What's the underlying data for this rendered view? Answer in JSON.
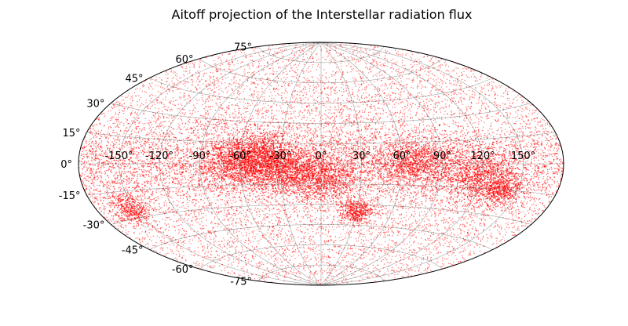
{
  "chart_data": {
    "type": "scatter",
    "projection": "aitoff",
    "title": "Aitoff projection of the Interstellar radiation flux",
    "xlabel": "",
    "ylabel": "",
    "xlim": [
      -180,
      180
    ],
    "ylim": [
      -90,
      90
    ],
    "grid": true,
    "legend": false,
    "marker_color": "#ff0000",
    "grid_color": "#555555",
    "x_ticks": [
      -150,
      -120,
      -90,
      -60,
      -30,
      0,
      30,
      60,
      90,
      120,
      150
    ],
    "x_tick_labels": [
      "-150°",
      "-120°",
      "-90°",
      "-60°",
      "-30°",
      "0°",
      "30°",
      "60°",
      "90°",
      "120°",
      "150°"
    ],
    "y_ticks": [
      75,
      60,
      45,
      30,
      15,
      0,
      -15,
      -30,
      -45,
      -60,
      -75
    ],
    "y_tick_labels": [
      "75°",
      "60°",
      "45°",
      "30°",
      "15°",
      "0°",
      "-15°",
      "-30°",
      "-45°",
      "-60°",
      "-75°"
    ],
    "density_clusters": [
      {
        "lon": -60,
        "lat": 0,
        "level": "high"
      },
      {
        "lon": -45,
        "lat": 8,
        "level": "high"
      },
      {
        "lon": -30,
        "lat": -5,
        "level": "high"
      },
      {
        "lon": 0,
        "lat": -10,
        "level": "high"
      },
      {
        "lon": 70,
        "lat": 0,
        "level": "high"
      },
      {
        "lon": 120,
        "lat": -8,
        "level": "high"
      },
      {
        "lon": 140,
        "lat": -15,
        "level": "medium"
      },
      {
        "lon": -155,
        "lat": -25,
        "level": "medium"
      },
      {
        "lon": 30,
        "lat": -35,
        "level": "medium"
      }
    ]
  }
}
